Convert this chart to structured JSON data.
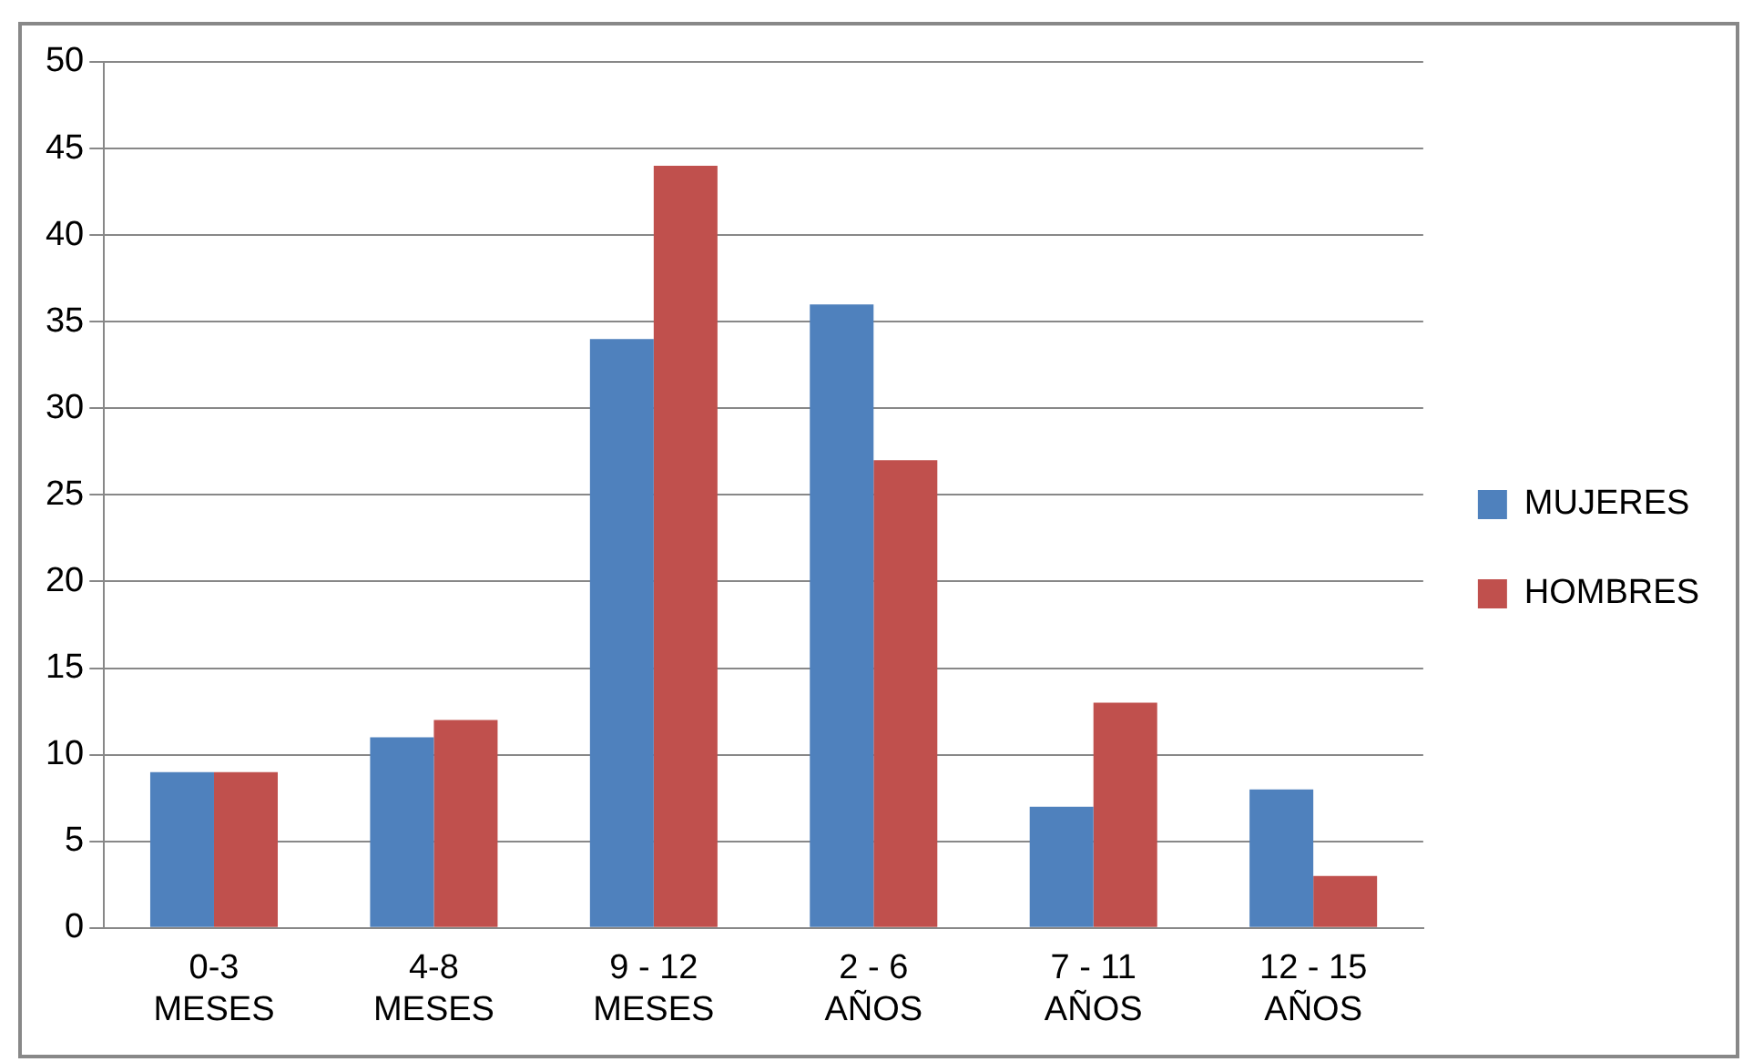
{
  "chart_data": {
    "type": "bar",
    "categories": [
      "0-3 MESES",
      "4-8 MESES",
      "9 - 12 MESES",
      "2 - 6 AÑOS",
      "7 - 11 AÑOS",
      "12 - 15 AÑOS"
    ],
    "series": [
      {
        "name": "MUJERES",
        "color": "#4f81bd",
        "values": [
          9,
          11,
          34,
          36,
          7,
          8
        ]
      },
      {
        "name": "HOMBRES",
        "color": "#c0504d",
        "values": [
          9,
          12,
          44,
          27,
          13,
          3
        ]
      }
    ],
    "ylim": [
      0,
      50
    ],
    "yticks": [
      0,
      5,
      10,
      15,
      20,
      25,
      30,
      35,
      40,
      45,
      50
    ],
    "grid": "y",
    "legend": "right"
  }
}
